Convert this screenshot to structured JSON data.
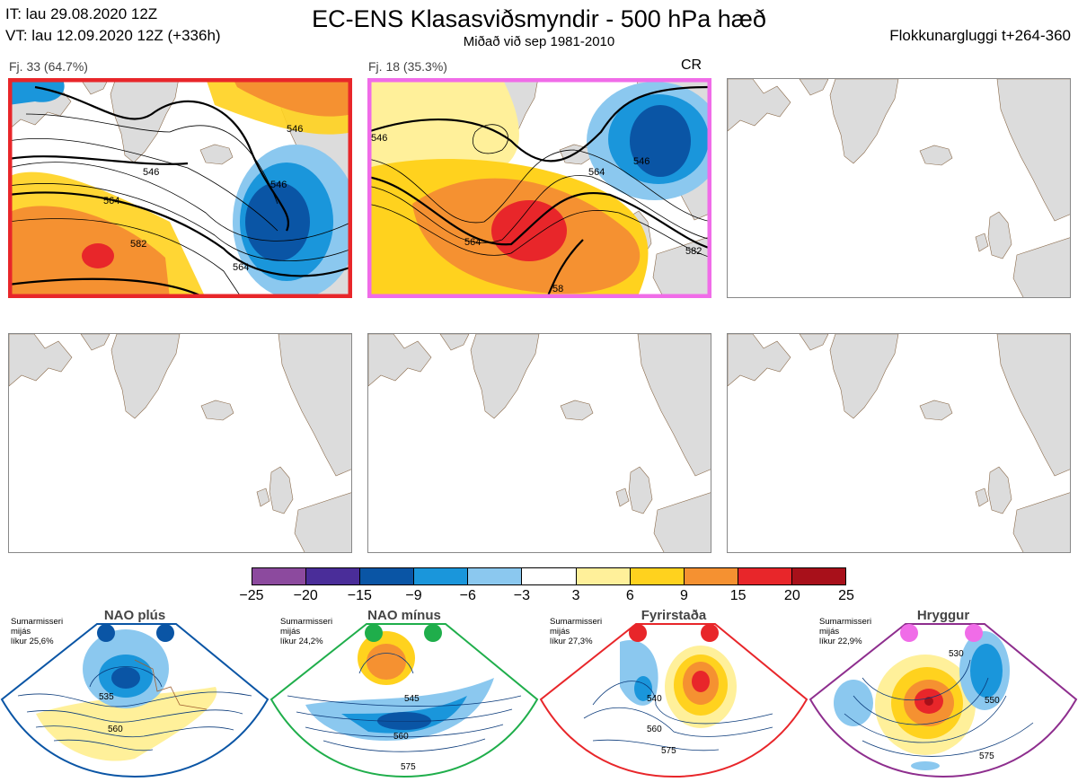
{
  "header": {
    "it": "IT: lau 29.08.2020 12Z",
    "vt": "VT: lau 12.09.2020 12Z  (+336h)",
    "title": "EC-ENS Klasasviðsmyndir - 500 hPa hæð",
    "subtitle": "Miðað við sep 1981-2010",
    "window": "Flokkunargluggi t+264-360"
  },
  "clusters": [
    {
      "label": "Fj. 33 (64.7%)",
      "border": "#e8262a",
      "tag": "",
      "contours": [
        "546",
        "546",
        "564",
        "582",
        "564",
        "546"
      ]
    },
    {
      "label": "Fj. 18 (35.3%)",
      "border": "#f06ce8",
      "tag": "CR",
      "contours": [
        "546",
        "564",
        "546",
        "564",
        "582",
        "58"
      ]
    }
  ],
  "colorbar": {
    "colors": [
      "#8c4a9e",
      "#4a2d99",
      "#0a55a5",
      "#1a96db",
      "#8bc8ef",
      "#ffffff",
      "#fff09a",
      "#ffd21e",
      "#f59131",
      "#e8262a",
      "#a8101a"
    ],
    "ticks": [
      "−25",
      "−20",
      "−15",
      "−9",
      "−6",
      "−3",
      "3",
      "6",
      "9",
      "15",
      "20",
      "25"
    ]
  },
  "regimes": [
    {
      "name": "NAO plús",
      "info": [
        "Sumarmisseri",
        "mijás",
        "líkur 25,6%"
      ],
      "color": "#0a55a5",
      "labels": [
        "535",
        "560"
      ]
    },
    {
      "name": "NAO mínus",
      "info": [
        "Sumarmisseri",
        "mijás",
        "líkur 24,2%"
      ],
      "color": "#1fae4b",
      "labels": [
        "545",
        "560",
        "575"
      ]
    },
    {
      "name": "Fyrirstaða",
      "info": [
        "Sumarmisseri",
        "mijás",
        "líkur 27,3%"
      ],
      "color": "#e8262a",
      "labels": [
        "540",
        "560",
        "575"
      ]
    },
    {
      "name": "Hryggur",
      "info": [
        "Sumarmisseri",
        "mijás",
        "líkur 22,9%"
      ],
      "color": "#f06ce8",
      "labels": [
        "530",
        "550",
        "575"
      ]
    }
  ]
}
